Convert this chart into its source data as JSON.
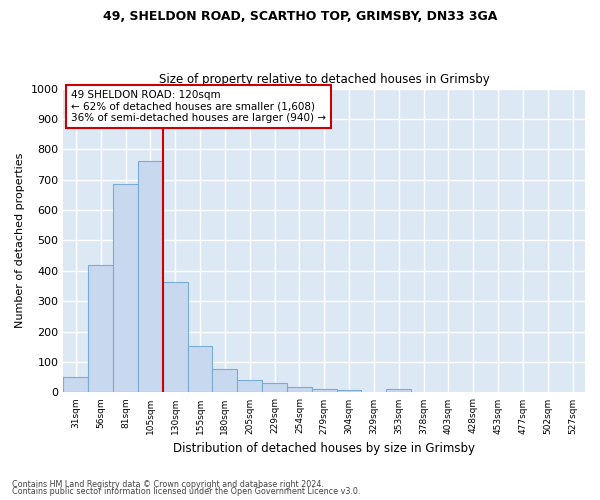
{
  "title1": "49, SHELDON ROAD, SCARTHO TOP, GRIMSBY, DN33 3GA",
  "title2": "Size of property relative to detached houses in Grimsby",
  "xlabel": "Distribution of detached houses by size in Grimsby",
  "ylabel": "Number of detached properties",
  "bar_labels": [
    "31sqm",
    "56sqm",
    "81sqm",
    "105sqm",
    "130sqm",
    "155sqm",
    "180sqm",
    "205sqm",
    "229sqm",
    "254sqm",
    "279sqm",
    "304sqm",
    "329sqm",
    "353sqm",
    "378sqm",
    "403sqm",
    "428sqm",
    "453sqm",
    "477sqm",
    "502sqm",
    "527sqm"
  ],
  "bar_values": [
    50,
    420,
    685,
    760,
    365,
    152,
    76,
    40,
    30,
    18,
    12,
    8,
    0,
    10,
    0,
    0,
    0,
    0,
    0,
    0,
    0
  ],
  "bar_color": "#c8d8ee",
  "bar_edge_color": "#7aadd4",
  "red_line_x": 3.5,
  "annotation_line1": "49 SHELDON ROAD: 120sqm",
  "annotation_line2": "← 62% of detached houses are smaller (1,608)",
  "annotation_line3": "36% of semi-detached houses are larger (940) →",
  "ylim_max": 1000,
  "yticks": [
    0,
    100,
    200,
    300,
    400,
    500,
    600,
    700,
    800,
    900,
    1000
  ],
  "bg_color": "#dde8f5",
  "grid_color": "#ffffff",
  "fig_bg": "#ffffff",
  "footer1": "Contains HM Land Registry data © Crown copyright and database right 2024.",
  "footer2": "Contains public sector information licensed under the Open Government Licence v3.0."
}
